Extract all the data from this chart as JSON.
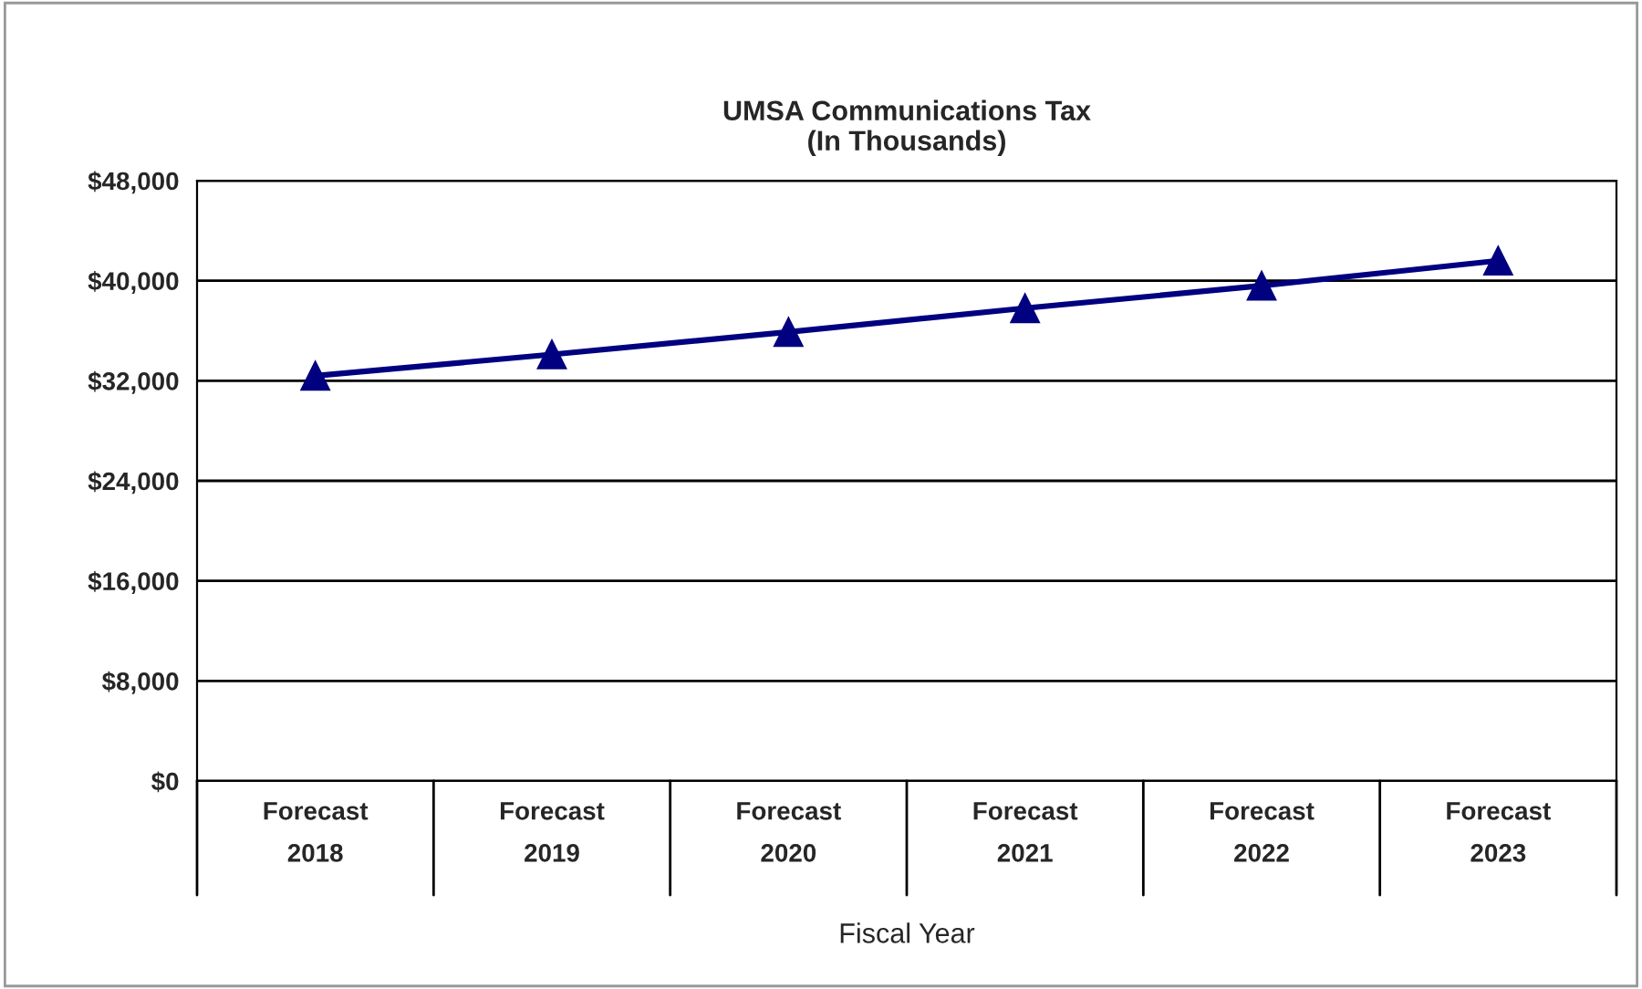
{
  "chart_data": {
    "type": "line",
    "title": "UMSA Communications Tax\n(In Thousands)",
    "xlabel": "Fiscal Year",
    "categories": [
      "Forecast\n2018",
      "Forecast\n2019",
      "Forecast\n2020",
      "Forecast\n2021",
      "Forecast\n2022",
      "Forecast\n2023"
    ],
    "series": [
      {
        "color": "#000080",
        "values": [
          32400,
          34100,
          35900,
          37800,
          39600,
          41600
        ]
      }
    ],
    "ylim": [
      0,
      48000
    ],
    "yticks": [
      {
        "value": 0,
        "label": "$0"
      },
      {
        "value": 8000,
        "label": "$8,000"
      },
      {
        "value": 16000,
        "label": "$16,000"
      },
      {
        "value": 24000,
        "label": "$24,000"
      },
      {
        "value": 32000,
        "label": "$32,000"
      },
      {
        "value": 40000,
        "label": "$40,000"
      },
      {
        "value": 48000,
        "label": "$48,000"
      }
    ],
    "grid": "y",
    "marker": "triangle",
    "line_style": "solid"
  }
}
